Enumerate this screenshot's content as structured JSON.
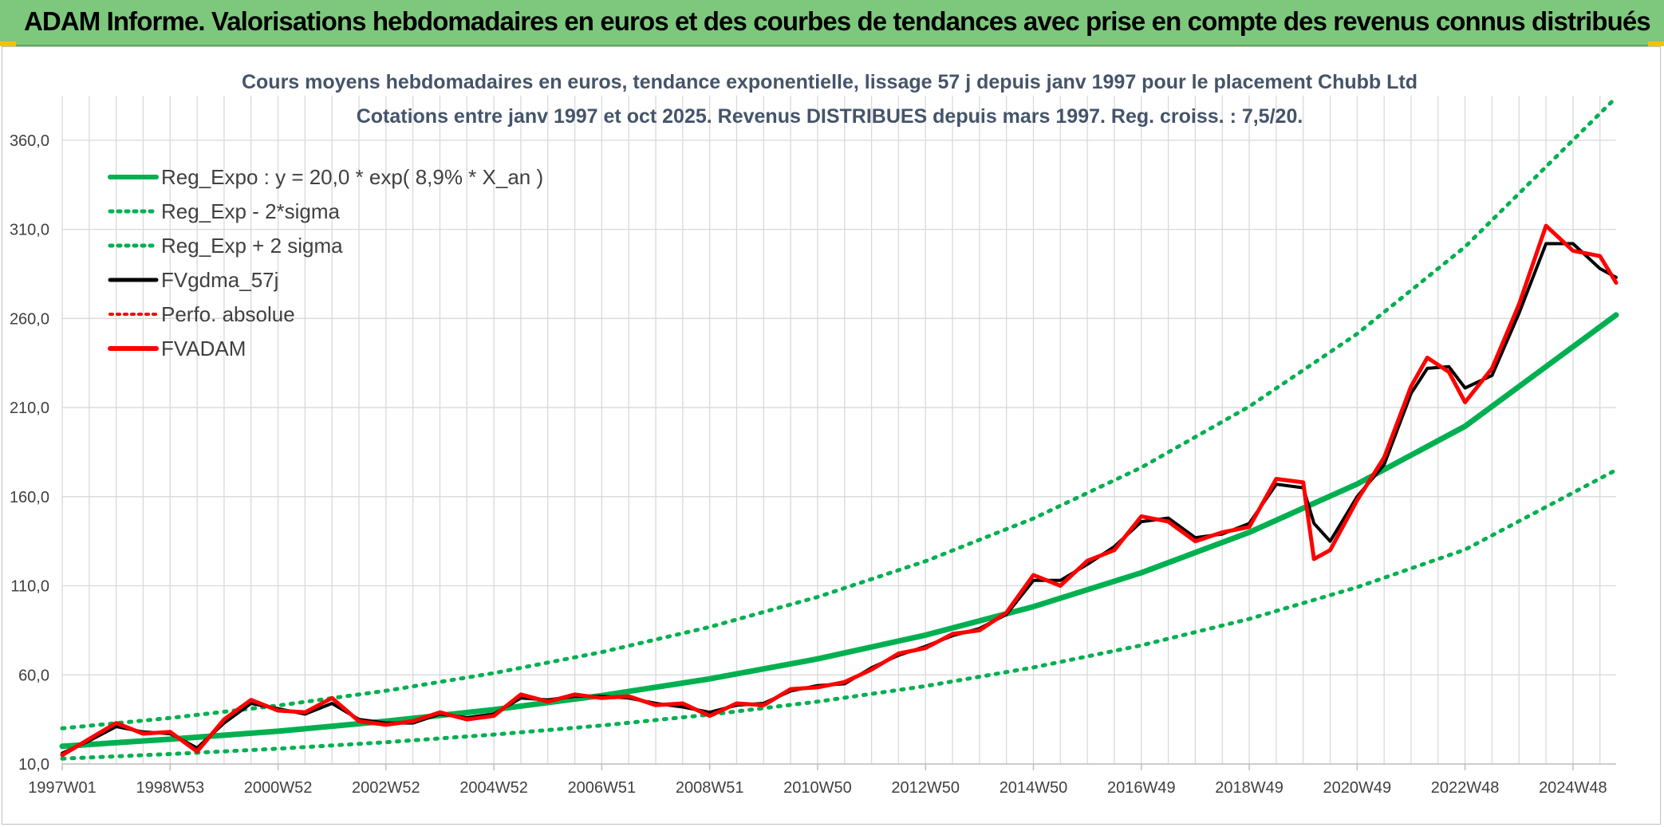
{
  "banner": {
    "title": "ADAM Informe. Valorisations hebdomadaires en euros et des courbes de tendances avec prise en compte des revenus connus distribués"
  },
  "colors": {
    "banner_bg": "#7dc87d",
    "green": "#00b050",
    "black": "#000000",
    "red": "#ff0000",
    "grid": "#d9d9d9"
  },
  "chart_data": {
    "type": "line",
    "title": [
      "Cours moyens hebdomadaires en euros, tendance exponentielle, lissage 57 j depuis janv 1997 pour le placement Chubb Ltd",
      "Cotations entre janv 1997 et oct 2025. Revenus DISTRIBUES depuis mars 1997. Reg. croiss. : 7,5/20."
    ],
    "xlabel": "",
    "ylabel": "",
    "xlim": [
      1997.0,
      2025.8
    ],
    "ylim": [
      10,
      385
    ],
    "y_ticks": [
      10,
      60,
      110,
      160,
      210,
      260,
      310,
      360
    ],
    "y_tick_labels": [
      "10,0",
      "60,0",
      "110,0",
      "160,0",
      "210,0",
      "260,0",
      "310,0",
      "360,0"
    ],
    "x_ticks": [
      1997.0,
      1999.0,
      2001.0,
      2003.0,
      2005.0,
      2007.0,
      2009.0,
      2011.0,
      2013.0,
      2015.0,
      2017.0,
      2019.0,
      2021.0,
      2023.0,
      2025.0
    ],
    "x_tick_labels": [
      "1997W01",
      "1998W53",
      "2000W52",
      "2002W52",
      "2004W52",
      "2006W51",
      "2008W51",
      "2010W50",
      "2012W50",
      "2014W50",
      "2016W49",
      "2018W49",
      "2020W49",
      "2022W48",
      "2024W48"
    ],
    "grid": true,
    "legend_position": "top-left",
    "legend": [
      {
        "label": "Reg_Expo : y = 20,0 * exp( 8,9% *  X_an )",
        "color": "#00b050",
        "style": "solid"
      },
      {
        "label": "Reg_Exp - 2*sigma",
        "color": "#00b050",
        "style": "dotted"
      },
      {
        "label": "Reg_Exp + 2 sigma",
        "color": "#00b050",
        "style": "dotted"
      },
      {
        "label": "FVgdma_57j",
        "color": "#000000",
        "style": "solid"
      },
      {
        "label": "Perfo. absolue",
        "color": "#ff0000",
        "style": "dotted"
      },
      {
        "label": "FVADAM",
        "color": "#ff0000",
        "style": "solid"
      }
    ],
    "series": [
      {
        "name": "Reg_Expo",
        "x": [
          1997.0,
          1999.0,
          2001.0,
          2003.0,
          2005.0,
          2007.0,
          2009.0,
          2011.0,
          2013.0,
          2015.0,
          2017.0,
          2019.0,
          2021.0,
          2023.0,
          2025.8
        ],
        "values": [
          20.0,
          23.9,
          28.4,
          34.0,
          40.5,
          48.4,
          57.8,
          69.0,
          82.3,
          98.3,
          117.3,
          140.0,
          167.1,
          199.5,
          262.0
        ]
      },
      {
        "name": "Reg_Exp - 2*sigma",
        "x": [
          1997.0,
          1999.0,
          2001.0,
          2003.0,
          2005.0,
          2007.0,
          2009.0,
          2011.0,
          2013.0,
          2015.0,
          2017.0,
          2019.0,
          2021.0,
          2023.0,
          2025.8
        ],
        "values": [
          13.0,
          15.6,
          18.6,
          22.2,
          26.5,
          31.6,
          37.7,
          45.0,
          53.7,
          64.2,
          76.6,
          91.4,
          109.2,
          130.3,
          175.0
        ]
      },
      {
        "name": "Reg_Exp + 2 sigma",
        "x": [
          1997.0,
          1999.0,
          2001.0,
          2003.0,
          2005.0,
          2007.0,
          2009.0,
          2011.0,
          2013.0,
          2015.0,
          2017.0,
          2019.0,
          2021.0,
          2023.0,
          2025.8
        ],
        "values": [
          30.0,
          35.8,
          42.8,
          51.1,
          61.0,
          72.8,
          86.9,
          103.7,
          123.8,
          147.8,
          176.4,
          210.6,
          251.4,
          300.2,
          384.0
        ]
      },
      {
        "name": "FVgdma_57j",
        "x": [
          1997.0,
          1997.5,
          1998.0,
          1998.5,
          1999.0,
          1999.5,
          2000.0,
          2000.5,
          2001.0,
          2001.5,
          2002.0,
          2002.5,
          2003.0,
          2003.5,
          2004.0,
          2004.5,
          2005.0,
          2005.5,
          2006.0,
          2006.5,
          2007.0,
          2007.5,
          2008.0,
          2008.5,
          2009.0,
          2009.5,
          2010.0,
          2010.5,
          2011.0,
          2011.5,
          2012.0,
          2012.5,
          2013.0,
          2013.5,
          2014.0,
          2014.5,
          2015.0,
          2015.5,
          2016.0,
          2016.5,
          2017.0,
          2017.5,
          2018.0,
          2018.5,
          2019.0,
          2019.5,
          2020.0,
          2020.2,
          2020.5,
          2021.0,
          2021.5,
          2022.0,
          2022.3,
          2022.7,
          2023.0,
          2023.5,
          2024.0,
          2024.5,
          2025.0,
          2025.5,
          2025.8
        ],
        "values": [
          16.0,
          23.0,
          31.0,
          28.0,
          27.0,
          19.0,
          33.0,
          44.0,
          41.0,
          38.0,
          44.0,
          35.0,
          33.0,
          33.0,
          38.0,
          36.0,
          38.0,
          47.0,
          46.0,
          48.0,
          48.0,
          47.0,
          44.0,
          42.0,
          39.0,
          43.0,
          44.0,
          51.0,
          54.0,
          55.0,
          64.0,
          71.0,
          76.0,
          82.0,
          86.0,
          94.0,
          113.0,
          113.0,
          122.0,
          132.0,
          146.0,
          148.0,
          137.0,
          139.0,
          145.0,
          167.0,
          165.0,
          145.0,
          135.0,
          160.0,
          178.0,
          218.0,
          232.0,
          233.0,
          221.0,
          228.0,
          263.0,
          302.0,
          302.0,
          288.0,
          283.0
        ]
      },
      {
        "name": "FVADAM",
        "x": [
          1997.0,
          1997.5,
          1998.0,
          1998.5,
          1999.0,
          1999.5,
          2000.0,
          2000.5,
          2001.0,
          2001.5,
          2002.0,
          2002.5,
          2003.0,
          2003.5,
          2004.0,
          2004.5,
          2005.0,
          2005.5,
          2006.0,
          2006.5,
          2007.0,
          2007.5,
          2008.0,
          2008.5,
          2009.0,
          2009.5,
          2010.0,
          2010.5,
          2011.0,
          2011.5,
          2012.0,
          2012.5,
          2013.0,
          2013.5,
          2014.0,
          2014.5,
          2015.0,
          2015.5,
          2016.0,
          2016.5,
          2017.0,
          2017.5,
          2018.0,
          2018.5,
          2019.0,
          2019.5,
          2020.0,
          2020.2,
          2020.5,
          2021.0,
          2021.5,
          2022.0,
          2022.3,
          2022.7,
          2023.0,
          2023.5,
          2024.0,
          2024.5,
          2025.0,
          2025.5,
          2025.8
        ],
        "values": [
          15.0,
          24.0,
          33.0,
          27.0,
          28.0,
          17.0,
          35.0,
          46.0,
          40.0,
          39.0,
          47.0,
          34.0,
          32.0,
          34.0,
          39.0,
          35.0,
          37.0,
          49.0,
          45.0,
          49.0,
          47.0,
          48.0,
          43.0,
          44.0,
          37.0,
          44.0,
          43.0,
          52.0,
          53.0,
          56.0,
          63.0,
          72.0,
          75.0,
          83.0,
          85.0,
          95.0,
          116.0,
          110.0,
          124.0,
          130.0,
          149.0,
          146.0,
          135.0,
          140.0,
          143.0,
          170.0,
          168.0,
          125.0,
          130.0,
          158.0,
          182.0,
          222.0,
          238.0,
          230.0,
          213.0,
          232.0,
          268.0,
          312.0,
          298.0,
          295.0,
          280.0
        ]
      }
    ]
  }
}
